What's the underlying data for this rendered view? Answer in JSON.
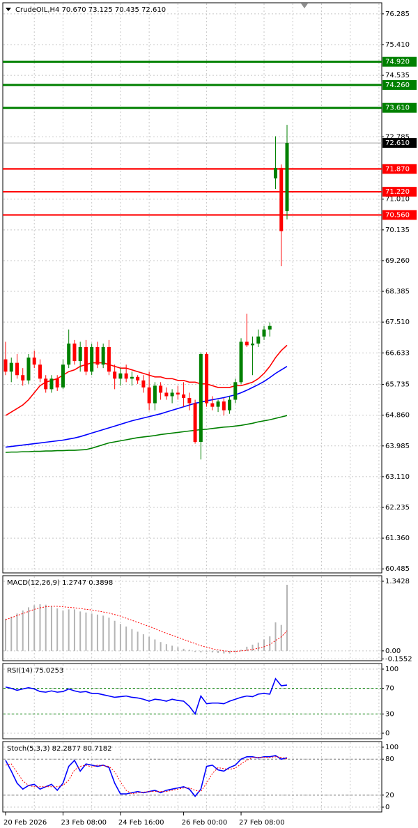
{
  "chart_data": [
    {
      "type": "candlestick",
      "title": "CrudeOIL,H4  70.670 73.125 70.435 72.610",
      "categories": [
        "20 Feb 2026",
        null,
        null,
        null,
        null,
        null,
        null,
        null,
        null,
        null,
        "23 Feb 08:00",
        null,
        null,
        null,
        null,
        null,
        null,
        null,
        null,
        null,
        "24 Feb 16:00",
        null,
        null,
        null,
        null,
        null,
        null,
        null,
        null,
        null,
        null,
        "26 Feb 00:00",
        null,
        null,
        null,
        null,
        null,
        null,
        null,
        null,
        null,
        "27 Feb 08:00",
        null,
        null,
        null,
        null,
        null,
        null,
        null,
        null
      ],
      "open": [
        66.45,
        66.1,
        66.35,
        66.0,
        65.85,
        66.5,
        66.3,
        65.9,
        65.6,
        65.9,
        65.65,
        66.3,
        66.9,
        66.4,
        66.8,
        66.1,
        66.8,
        66.3,
        66.8,
        66.1,
        65.9,
        66.05,
        65.9,
        65.95,
        65.85,
        65.65,
        65.2,
        65.7,
        65.5,
        65.4,
        65.5,
        65.45,
        65.35,
        65.2,
        64.1,
        66.6,
        65.2,
        65.1,
        65.25,
        65.0,
        65.3,
        65.8,
        66.95,
        66.85,
        66.9,
        67.1,
        67.3,
        71.6,
        71.9,
        70.67
      ],
      "high": [
        66.95,
        66.5,
        66.6,
        66.2,
        66.6,
        66.7,
        66.45,
        66.0,
        66.0,
        66.0,
        66.45,
        67.3,
        67.0,
        66.95,
        67.0,
        66.9,
        66.95,
        66.9,
        67.0,
        66.3,
        66.2,
        66.3,
        66.1,
        66.0,
        66.0,
        66.1,
        65.8,
        65.8,
        65.65,
        65.6,
        65.7,
        65.8,
        65.5,
        65.3,
        66.65,
        66.65,
        65.4,
        65.3,
        65.35,
        65.4,
        65.9,
        67.05,
        67.75,
        67.1,
        67.3,
        67.4,
        67.5,
        72.8,
        72.0,
        73.125
      ],
      "low": [
        66.0,
        65.8,
        65.9,
        65.7,
        65.75,
        66.2,
        65.8,
        65.5,
        65.5,
        65.55,
        65.6,
        66.2,
        66.3,
        66.1,
        66.0,
        66.0,
        66.2,
        66.2,
        66.0,
        65.6,
        65.7,
        65.8,
        65.7,
        65.75,
        65.5,
        65.0,
        65.0,
        65.3,
        65.3,
        65.2,
        65.3,
        65.1,
        65.0,
        64.05,
        63.6,
        65.1,
        65.0,
        64.95,
        64.85,
        64.9,
        65.2,
        65.75,
        66.8,
        66.0,
        66.8,
        67.0,
        67.1,
        71.3,
        69.1,
        70.435
      ],
      "close": [
        66.1,
        66.35,
        66.0,
        65.85,
        66.5,
        66.3,
        65.9,
        65.6,
        65.9,
        65.65,
        66.3,
        66.9,
        66.4,
        66.8,
        66.1,
        66.8,
        66.3,
        66.8,
        66.1,
        65.9,
        66.05,
        65.9,
        65.95,
        65.85,
        65.65,
        65.2,
        65.7,
        65.5,
        65.4,
        65.5,
        65.45,
        65.35,
        65.2,
        64.1,
        66.6,
        65.2,
        65.1,
        65.25,
        65.0,
        65.3,
        65.8,
        66.95,
        66.85,
        66.9,
        67.1,
        67.3,
        67.4,
        71.9,
        70.1,
        72.61
      ],
      "up_color": "#008000",
      "down_color": "#ff0000",
      "series": [
        {
          "color": "#ff0000",
          "values": [
            64.85,
            64.95,
            65.05,
            65.15,
            65.3,
            65.5,
            65.7,
            65.8,
            65.85,
            65.9,
            66.0,
            66.1,
            66.15,
            66.25,
            66.3,
            66.35,
            66.35,
            66.35,
            66.3,
            66.25,
            66.2,
            66.2,
            66.15,
            66.1,
            66.05,
            66.0,
            65.95,
            65.95,
            65.9,
            65.9,
            65.85,
            65.85,
            65.8,
            65.8,
            65.75,
            65.75,
            65.7,
            65.65,
            65.65,
            65.65,
            65.7,
            65.7,
            65.75,
            65.8,
            65.9,
            66.05,
            66.25,
            66.5,
            66.7,
            66.85
          ]
        },
        {
          "color": "#0000ff",
          "values": [
            63.95,
            63.97,
            63.99,
            64.01,
            64.03,
            64.05,
            64.07,
            64.09,
            64.11,
            64.13,
            64.15,
            64.18,
            64.21,
            64.25,
            64.3,
            64.35,
            64.4,
            64.45,
            64.5,
            64.55,
            64.6,
            64.65,
            64.7,
            64.74,
            64.78,
            64.82,
            64.86,
            64.9,
            64.95,
            65.0,
            65.05,
            65.1,
            65.15,
            65.2,
            65.23,
            65.27,
            65.3,
            65.33,
            65.36,
            65.4,
            65.44,
            65.5,
            65.57,
            65.65,
            65.73,
            65.82,
            65.93,
            66.05,
            66.15,
            66.25
          ]
        },
        {
          "color": "#008000",
          "values": [
            63.8,
            63.81,
            63.81,
            63.82,
            63.82,
            63.83,
            63.83,
            63.84,
            63.84,
            63.85,
            63.85,
            63.86,
            63.86,
            63.87,
            63.88,
            63.92,
            63.97,
            64.02,
            64.07,
            64.1,
            64.13,
            64.16,
            64.19,
            64.22,
            64.24,
            64.26,
            64.28,
            64.31,
            64.33,
            64.35,
            64.37,
            64.39,
            64.41,
            64.43,
            64.45,
            64.46,
            64.48,
            64.5,
            64.52,
            64.53,
            64.55,
            64.57,
            64.6,
            64.63,
            64.67,
            64.7,
            64.73,
            64.77,
            64.81,
            64.85
          ]
        }
      ],
      "levels": [
        {
          "value": 74.92,
          "label": "74.920",
          "color": "#008000"
        },
        {
          "value": 74.26,
          "label": "74.260",
          "color": "#008000"
        },
        {
          "value": 73.61,
          "label": "73.610",
          "color": "#008000"
        },
        {
          "value": 71.87,
          "label": "71.870",
          "color": "#ff0000"
        },
        {
          "value": 71.22,
          "label": "71.220",
          "color": "#ff0000"
        },
        {
          "value": 70.56,
          "label": "70.560",
          "color": "#ff0000"
        }
      ],
      "last_price": {
        "value": 72.61,
        "label": "72.610"
      },
      "ylim": [
        60.37,
        76.6
      ],
      "yticks": [
        76.285,
        {
          "value": 75.41,
          "label": "75.410"
        },
        74.535,
        72.785,
        {
          "value": 71.01,
          "label": "71.010"
        },
        70.135,
        {
          "value": 69.26,
          "label": "69.260"
        },
        68.385,
        {
          "value": 67.51,
          "label": "67.510"
        },
        66.633,
        65.735,
        {
          "value": 64.86,
          "label": "64.860"
        },
        63.985,
        {
          "value": 63.11,
          "label": "63.110"
        },
        62.235,
        {
          "value": 61.36,
          "label": "61.360"
        },
        60.485
      ],
      "grid": true
    },
    {
      "type": "bar",
      "title": "MACD(12,26,9) 1.2747 0.3898",
      "color": "#b4b4b4",
      "values": [
        0.62,
        0.66,
        0.72,
        0.78,
        0.84,
        0.88,
        0.9,
        0.89,
        0.86,
        0.82,
        0.78,
        0.8,
        0.8,
        0.76,
        0.74,
        0.72,
        0.7,
        0.68,
        0.64,
        0.58,
        0.52,
        0.47,
        0.42,
        0.37,
        0.32,
        0.27,
        0.22,
        0.17,
        0.13,
        0.1,
        0.07,
        0.04,
        0.02,
        -0.02,
        -0.03,
        -0.02,
        -0.03,
        -0.04,
        -0.05,
        -0.05,
        -0.03,
        0.02,
        0.08,
        0.12,
        0.16,
        0.22,
        0.28,
        0.55,
        0.5,
        1.2747
      ],
      "series": [
        {
          "color": "#ff0000",
          "dashed": true,
          "values": [
            0.6,
            0.64,
            0.68,
            0.72,
            0.76,
            0.8,
            0.83,
            0.85,
            0.86,
            0.86,
            0.85,
            0.84,
            0.83,
            0.82,
            0.8,
            0.79,
            0.77,
            0.75,
            0.73,
            0.7,
            0.67,
            0.63,
            0.59,
            0.55,
            0.51,
            0.47,
            0.43,
            0.38,
            0.34,
            0.3,
            0.26,
            0.22,
            0.18,
            0.14,
            0.1,
            0.07,
            0.04,
            0.02,
            0.0,
            -0.01,
            -0.01,
            0.0,
            0.01,
            0.03,
            0.05,
            0.08,
            0.12,
            0.2,
            0.27,
            0.3898
          ]
        }
      ],
      "ylim": [
        -0.19,
        1.45
      ],
      "yticks": [
        1.3428,
        {
          "value": 0,
          "label": "0.00"
        },
        -0.1552
      ]
    },
    {
      "type": "line",
      "title": "RSI(14) 75.0253",
      "series": [
        {
          "color": "#0000ff",
          "values": [
            72,
            70,
            67,
            69,
            71,
            69,
            65,
            64,
            66,
            64,
            65,
            69,
            66,
            64,
            65,
            62,
            62,
            60,
            58,
            56,
            57,
            58,
            56,
            55,
            53,
            50,
            53,
            52,
            50,
            53,
            51,
            50,
            42,
            30,
            58,
            46,
            47,
            47,
            46,
            50,
            53,
            56,
            58,
            57,
            61,
            62,
            61,
            85,
            74,
            75.0253
          ]
        }
      ],
      "levels": [
        70,
        30
      ],
      "level_color": "#008000",
      "ylim": [
        -8.7,
        108.7
      ],
      "yticks": [
        100,
        70,
        30,
        0
      ]
    },
    {
      "type": "line",
      "title": "Stoch(5,3,3) 82.2877 80.7182",
      "series": [
        {
          "color": "#0000ff",
          "values": [
            78,
            60,
            40,
            30,
            36,
            38,
            30,
            34,
            38,
            28,
            40,
            68,
            78,
            60,
            72,
            70,
            68,
            70,
            66,
            40,
            22,
            22,
            24,
            26,
            24,
            26,
            28,
            24,
            28,
            30,
            32,
            34,
            30,
            18,
            30,
            68,
            70,
            62,
            60,
            66,
            70,
            80,
            84,
            84,
            82,
            84,
            84,
            86,
            80,
            82.2877
          ]
        },
        {
          "color": "#ff0000",
          "dashed": true,
          "values": [
            70,
            72,
            58,
            44,
            36,
            34,
            34,
            34,
            34,
            34,
            36,
            45,
            62,
            68,
            70,
            67,
            70,
            69,
            68,
            59,
            42,
            28,
            22,
            24,
            25,
            26,
            26,
            26,
            26,
            28,
            30,
            32,
            32,
            28,
            26,
            40,
            56,
            66,
            64,
            63,
            65,
            72,
            78,
            83,
            83,
            83,
            83,
            84,
            83,
            80.7182
          ]
        }
      ],
      "levels": [
        80,
        20
      ],
      "level_color": "#808080",
      "ylim": [
        -8.1,
        109.3
      ],
      "yticks": [
        100,
        80,
        20,
        0
      ]
    }
  ]
}
